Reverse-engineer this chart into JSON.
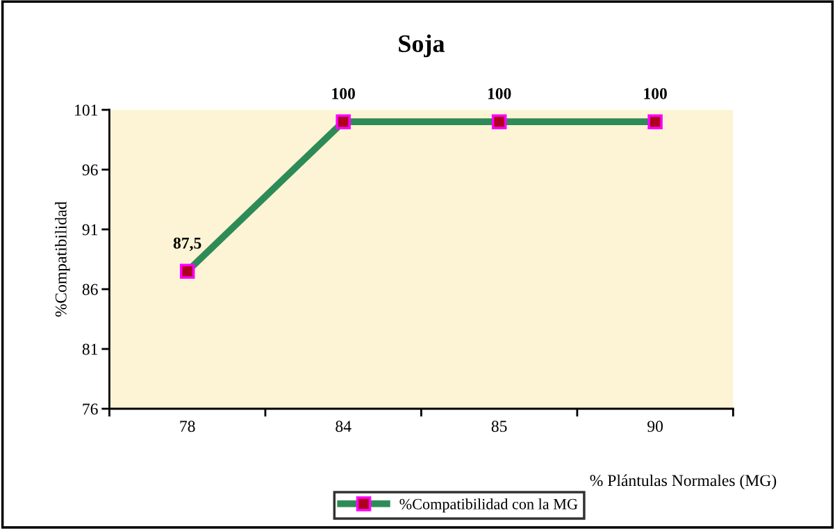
{
  "chart_data": {
    "type": "line",
    "title": "Soja",
    "xlabel": "% Plántulas Normales (MG)",
    "ylabel": "%Compatibilidad",
    "categories": [
      "78",
      "84",
      "85",
      "90"
    ],
    "series": [
      {
        "name": "%Compatibilidad con la MG",
        "color": "#2e8b57",
        "values": [
          87.5,
          100,
          100,
          100
        ],
        "value_labels": [
          "87,5",
          "100",
          "100",
          "100"
        ]
      }
    ],
    "ylim": [
      76,
      101
    ],
    "yticks": [
      76,
      81,
      86,
      91,
      96,
      101
    ],
    "grid": false,
    "legend": "bottom",
    "marker": "square",
    "line_style": "solid"
  }
}
